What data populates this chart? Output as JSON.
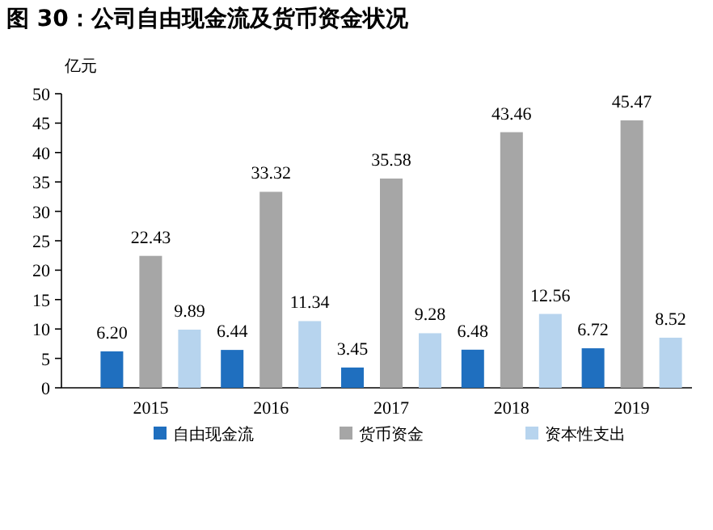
{
  "chart_data": {
    "type": "bar",
    "title": "图 30：公司自由现金流及货币资金状况",
    "ylabel": "亿元",
    "categories": [
      "2015",
      "2016",
      "2017",
      "2018",
      "2019"
    ],
    "series": [
      {
        "name": "自由现金流",
        "color": "#1f6fbf",
        "values": [
          6.2,
          6.44,
          3.45,
          6.48,
          6.72
        ],
        "value_labels": [
          "6.20",
          "6.44",
          "3.45",
          "6.48",
          "6.72"
        ]
      },
      {
        "name": "货币资金",
        "color": "#a6a6a6",
        "values": [
          22.43,
          33.32,
          35.58,
          43.46,
          45.47
        ],
        "value_labels": [
          "22.43",
          "33.32",
          "35.58",
          "43.46",
          "45.47"
        ]
      },
      {
        "name": "资本性支出",
        "color": "#b7d4ee",
        "values": [
          9.89,
          11.34,
          9.28,
          12.56,
          8.52
        ],
        "value_labels": [
          "9.89",
          "11.34",
          "9.28",
          "12.56",
          "8.52"
        ]
      }
    ],
    "ylim": [
      0,
      50
    ],
    "yticks": [
      0,
      5,
      10,
      15,
      20,
      25,
      30,
      35,
      40,
      45,
      50
    ],
    "legend": "bottom",
    "grid": false
  }
}
